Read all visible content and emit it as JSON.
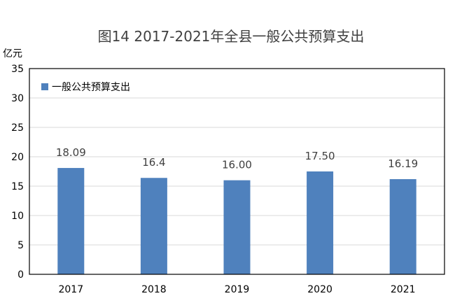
{
  "chart_data": {
    "type": "bar",
    "title": "图14  2017-2021年全县一般公共预算支出",
    "ylabel": "亿元",
    "xlabel": "",
    "categories": [
      "2017",
      "2018",
      "2019",
      "2020",
      "2021"
    ],
    "series": [
      {
        "name": "一般公共预算支出",
        "values": [
          18.09,
          16.4,
          16.0,
          17.5,
          16.19
        ],
        "data_labels": [
          "18.09",
          "16.4",
          "16.00",
          "17.50",
          "16.19"
        ],
        "color": "#4f81bd"
      }
    ],
    "ylim": [
      0,
      35
    ],
    "yticks": [
      "0",
      "5",
      "10",
      "15",
      "20",
      "25",
      "30",
      "35"
    ],
    "grid": true,
    "legend_position": "top-left"
  }
}
